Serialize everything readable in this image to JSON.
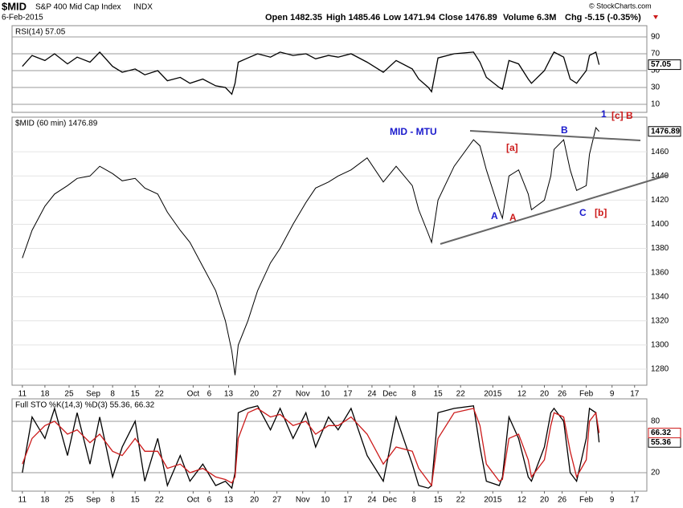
{
  "header": {
    "symbol": "$MID",
    "name": "S&P 400 Mid Cap Index",
    "exchange": "INDX",
    "date": "6-Feb-2015",
    "open": "Open 1482.35",
    "high": "High 1485.46",
    "low": "Low 1471.94",
    "close": "Close 1476.89",
    "volume": "Volume 6.3M",
    "change": "Chg -5.15 (-0.35%)",
    "credit": "© StockCharts.com"
  },
  "chart_data": [
    {
      "type": "line",
      "title": "RSI(14) 57.05",
      "x": [
        0,
        3,
        7,
        10,
        14,
        17,
        21,
        24,
        28,
        31,
        35,
        38,
        42,
        45,
        49,
        52,
        56,
        60,
        63,
        65,
        66,
        67,
        70,
        73,
        77,
        80,
        84,
        88,
        91,
        95,
        98,
        102,
        107,
        112,
        116,
        121,
        123,
        126,
        127,
        129,
        134,
        140,
        142,
        144,
        148,
        149,
        151,
        154,
        157,
        158,
        162,
        164,
        165,
        168,
        170,
        172,
        175,
        176,
        178,
        179
      ],
      "series": [
        {
          "name": "RSI(14)",
          "color": "#000000",
          "values": [
            55,
            68,
            62,
            70,
            58,
            66,
            60,
            72,
            55,
            48,
            52,
            45,
            50,
            38,
            42,
            35,
            40,
            32,
            30,
            22,
            35,
            60,
            65,
            70,
            66,
            72,
            68,
            70,
            64,
            68,
            66,
            70,
            60,
            48,
            62,
            52,
            40,
            30,
            25,
            65,
            70,
            72,
            60,
            42,
            30,
            28,
            62,
            58,
            40,
            35,
            50,
            65,
            72,
            66,
            40,
            35,
            50,
            68,
            72,
            57.05
          ]
        }
      ],
      "xlim": [
        -3.2,
        193.8
      ],
      "ylim": [
        0.5,
        103.3
      ],
      "yticks": [
        10,
        30,
        50,
        70,
        90
      ],
      "grid": true
    },
    {
      "type": "line",
      "title": "$MID (60 min) 1476.89",
      "x": [
        0,
        3,
        7,
        10,
        14,
        17,
        21,
        24,
        28,
        31,
        35,
        38,
        42,
        45,
        49,
        52,
        56,
        60,
        63,
        65,
        66,
        67,
        70,
        73,
        77,
        80,
        84,
        88,
        91,
        95,
        98,
        102,
        107,
        112,
        116,
        121,
        123,
        126,
        127,
        129,
        134,
        140,
        142,
        144,
        148,
        149,
        151,
        154,
        157,
        158,
        162,
        164,
        165,
        168,
        170,
        172,
        175,
        176,
        178,
        179
      ],
      "series": [
        {
          "name": "$MID",
          "color": "#000000",
          "values": [
            1372,
            1395,
            1415,
            1425,
            1432,
            1438,
            1440,
            1448,
            1442,
            1436,
            1438,
            1430,
            1425,
            1410,
            1395,
            1385,
            1365,
            1345,
            1320,
            1295,
            1275,
            1300,
            1320,
            1345,
            1368,
            1380,
            1400,
            1418,
            1430,
            1435,
            1440,
            1445,
            1455,
            1435,
            1448,
            1432,
            1412,
            1392,
            1385,
            1420,
            1448,
            1470,
            1465,
            1445,
            1412,
            1405,
            1440,
            1445,
            1425,
            1412,
            1420,
            1440,
            1462,
            1470,
            1445,
            1428,
            1432,
            1458,
            1480,
            1476.89
          ]
        }
      ],
      "xlim": [
        -3.2,
        193.8
      ],
      "ylim": [
        1266.7,
        1488.7
      ],
      "yticks": [
        1280,
        1300,
        1320,
        1340,
        1360,
        1380,
        1400,
        1420,
        1440,
        1460
      ],
      "grid": true,
      "xticks": [
        {
          "value": 0,
          "label": "11"
        },
        {
          "value": 7,
          "label": "18"
        },
        {
          "value": 14.5,
          "label": "25"
        },
        {
          "value": 22,
          "label": "Sep"
        },
        {
          "value": 28,
          "label": "8"
        },
        {
          "value": 35,
          "label": "15"
        },
        {
          "value": 42.5,
          "label": "22"
        },
        {
          "value": 53,
          "label": "Oct"
        },
        {
          "value": 58,
          "label": "6"
        },
        {
          "value": 64,
          "label": "13"
        },
        {
          "value": 72,
          "label": "20"
        },
        {
          "value": 79,
          "label": "27"
        },
        {
          "value": 87,
          "label": "Nov"
        },
        {
          "value": 94,
          "label": "10"
        },
        {
          "value": 101,
          "label": "17"
        },
        {
          "value": 108.5,
          "label": "24"
        },
        {
          "value": 114,
          "label": "Dec"
        },
        {
          "value": 121.5,
          "label": "8"
        },
        {
          "value": 129,
          "label": "15"
        },
        {
          "value": 136,
          "label": "22"
        },
        {
          "value": 146,
          "label": "2015"
        },
        {
          "value": 155,
          "label": "12"
        },
        {
          "value": 162,
          "label": "20"
        },
        {
          "value": 167.5,
          "label": "26"
        },
        {
          "value": 175,
          "label": "Feb"
        },
        {
          "value": 183,
          "label": "9"
        },
        {
          "value": 190,
          "label": "17"
        }
      ],
      "annotations": [
        {
          "text": "MID - MTU",
          "color": "#1a1acc"
        },
        {
          "text": "[a]",
          "color": "#cc1a1a"
        },
        {
          "text": "A",
          "color": "#1a1acc"
        },
        {
          "text": "A",
          "color": "#cc1a1a"
        },
        {
          "text": "B",
          "color": "#1a1acc"
        },
        {
          "text": "C",
          "color": "#1a1acc"
        },
        {
          "text": "[b]",
          "color": "#cc1a1a"
        },
        {
          "text": "1",
          "color": "#1a1acc"
        },
        {
          "text": "[c]",
          "color": "#cc1a1a"
        },
        {
          "text": "B",
          "color": "#cc1a1a"
        }
      ]
    },
    {
      "type": "line",
      "title": "Full STO %K(14,3) %D(3) 55.36, 66.32",
      "x": [
        0,
        3,
        7,
        10,
        14,
        17,
        21,
        24,
        28,
        31,
        35,
        38,
        42,
        45,
        49,
        52,
        56,
        60,
        63,
        65,
        66,
        67,
        70,
        73,
        77,
        80,
        84,
        88,
        91,
        95,
        98,
        102,
        107,
        112,
        116,
        121,
        123,
        126,
        127,
        129,
        134,
        140,
        142,
        144,
        148,
        149,
        151,
        154,
        157,
        158,
        162,
        164,
        165,
        168,
        170,
        172,
        175,
        176,
        178,
        179
      ],
      "series": [
        {
          "name": "%K(14,3)",
          "color": "#000000",
          "values": [
            20,
            85,
            60,
            95,
            40,
            90,
            30,
            85,
            15,
            50,
            80,
            10,
            60,
            5,
            40,
            10,
            30,
            5,
            10,
            2,
            20,
            90,
            95,
            98,
            70,
            95,
            60,
            90,
            50,
            85,
            70,
            95,
            40,
            10,
            85,
            30,
            5,
            2,
            5,
            90,
            95,
            98,
            50,
            10,
            5,
            15,
            85,
            60,
            15,
            10,
            50,
            90,
            95,
            80,
            20,
            10,
            60,
            95,
            90,
            55.36
          ]
        },
        {
          "name": "%D(3)",
          "color": "#cc1a1a",
          "values": [
            30,
            60,
            75,
            80,
            65,
            70,
            55,
            65,
            45,
            40,
            60,
            45,
            45,
            25,
            30,
            20,
            25,
            15,
            12,
            8,
            15,
            60,
            90,
            95,
            85,
            88,
            75,
            80,
            65,
            75,
            75,
            85,
            65,
            30,
            50,
            45,
            25,
            10,
            5,
            60,
            90,
            95,
            75,
            30,
            10,
            12,
            60,
            65,
            35,
            15,
            35,
            75,
            90,
            85,
            45,
            15,
            35,
            80,
            90,
            66.32
          ]
        }
      ],
      "xlim": [
        -3.2,
        193.8
      ],
      "ylim": [
        -1.6,
        106.2
      ],
      "yticks": [
        20,
        80
      ],
      "grid": true,
      "xticks": [
        {
          "value": 0,
          "label": "11"
        },
        {
          "value": 7,
          "label": "18"
        },
        {
          "value": 14.5,
          "label": "25"
        },
        {
          "value": 22,
          "label": "Sep"
        },
        {
          "value": 28,
          "label": "8"
        },
        {
          "value": 35,
          "label": "15"
        },
        {
          "value": 42.5,
          "label": "22"
        },
        {
          "value": 53,
          "label": "Oct"
        },
        {
          "value": 58,
          "label": "6"
        },
        {
          "value": 64,
          "label": "13"
        },
        {
          "value": 72,
          "label": "20"
        },
        {
          "value": 79,
          "label": "27"
        },
        {
          "value": 87,
          "label": "Nov"
        },
        {
          "value": 94,
          "label": "10"
        },
        {
          "value": 101,
          "label": "17"
        },
        {
          "value": 108.5,
          "label": "24"
        },
        {
          "value": 114,
          "label": "Dec"
        },
        {
          "value": 121.5,
          "label": "8"
        },
        {
          "value": 129,
          "label": "15"
        },
        {
          "value": 136,
          "label": "22"
        },
        {
          "value": 146,
          "label": "2015"
        },
        {
          "value": 155,
          "label": "12"
        },
        {
          "value": 162,
          "label": "20"
        },
        {
          "value": 167.5,
          "label": "26"
        },
        {
          "value": 175,
          "label": "Feb"
        },
        {
          "value": 183,
          "label": "9"
        },
        {
          "value": 190,
          "label": "17"
        }
      ]
    }
  ]
}
